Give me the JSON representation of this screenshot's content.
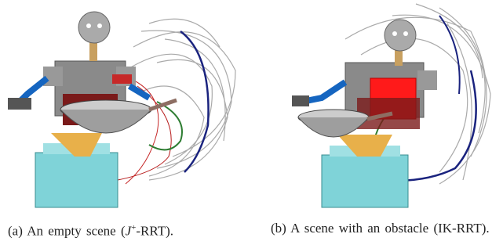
{
  "figure": {
    "panels": [
      {
        "label": "(a)",
        "caption_before": "An empty scene (",
        "caption_math": "J",
        "caption_sup": "+",
        "caption_after": "-RRT)."
      },
      {
        "label": "(b)",
        "caption_before": "A scene with an obstacle (IK-RRT)."
      }
    ]
  }
}
